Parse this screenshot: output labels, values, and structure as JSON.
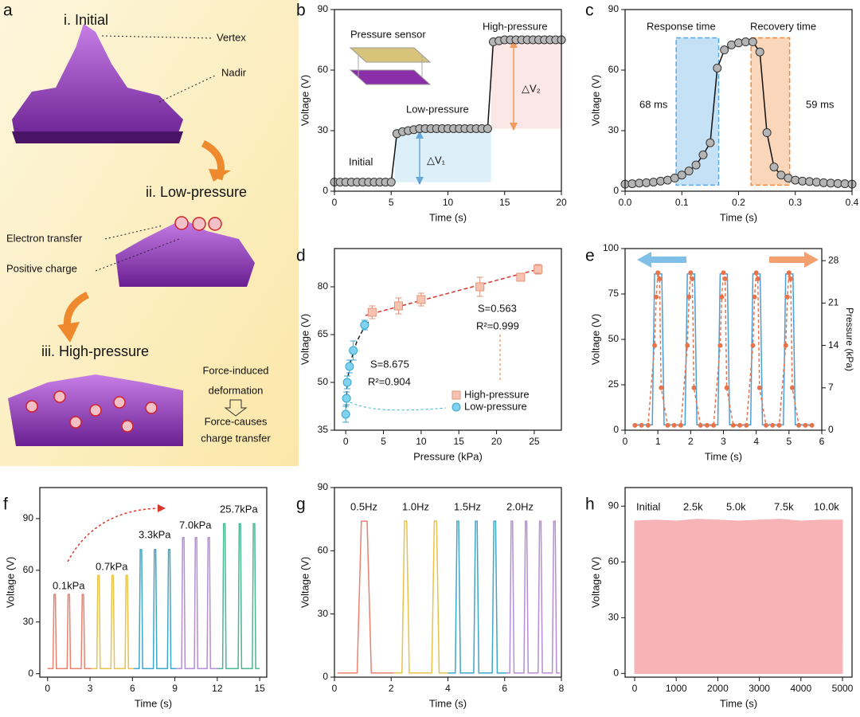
{
  "chart_data": [
    {
      "type": "illustration",
      "label": "a",
      "texts": [
        "i. Initial",
        "Vertex",
        "Nadir",
        "ii. Low-pressure",
        "Electron transfer",
        "Positive charge",
        "iii. High-pressure",
        "Force-induced",
        "deformation",
        "Force-causes",
        "charge transfer"
      ]
    },
    {
      "type": "line",
      "label": "b",
      "xlabel": "Time (s)",
      "ylabel": "Voltage (V)",
      "xlim": [
        0,
        20
      ],
      "ylim": [
        0,
        90
      ],
      "xticks": [
        0,
        5,
        10,
        15,
        20
      ],
      "yticks": [
        0,
        30,
        60,
        90
      ],
      "annotations": [
        "Pressure sensor",
        "Low-pressure",
        "High-pressure",
        "Initial",
        "△V₁",
        "△V₂"
      ],
      "regions": [
        {
          "x": [
            5.3,
            13.8
          ],
          "y": [
            4.5,
            31
          ],
          "color": "#9fd3ef"
        },
        {
          "x": [
            13.8,
            20
          ],
          "y": [
            31,
            75
          ],
          "color": "#f7b9b9"
        }
      ],
      "series": [
        {
          "color": "#111111",
          "marker": "circle",
          "marker_color": "#b5b5b5",
          "line_style": "solid",
          "x": [
            0,
            0.5,
            1,
            1.5,
            2,
            2.5,
            3,
            3.5,
            4,
            4.5,
            5,
            5.5,
            6,
            6.5,
            7,
            7.5,
            8,
            8.5,
            9,
            9.5,
            10,
            10.5,
            11,
            11.5,
            12,
            12.5,
            13,
            13.5,
            14,
            14.5,
            15,
            15.5,
            16,
            16.5,
            17,
            17.5,
            18,
            18.5,
            19,
            19.5,
            20
          ],
          "values": [
            4.5,
            4.5,
            4.5,
            4.5,
            4.5,
            4.5,
            4.5,
            4.5,
            4.5,
            4.5,
            4.5,
            28.5,
            29.5,
            30,
            30.5,
            31,
            31,
            31,
            31,
            31,
            31,
            31,
            31,
            31,
            31,
            31,
            31,
            31,
            74,
            74.5,
            75,
            75,
            75,
            75,
            75,
            75,
            75,
            75,
            75,
            75,
            75
          ]
        }
      ]
    },
    {
      "type": "line",
      "label": "c",
      "xlabel": "Time (s)",
      "ylabel": "Voltage (V)",
      "xlim": [
        0,
        0.4
      ],
      "ylim": [
        0,
        90
      ],
      "xticks": [
        {
          "value": 0,
          "label": "0.0"
        },
        0.1,
        0.2,
        0.3,
        0.4
      ],
      "yticks": [
        0,
        30,
        60,
        90
      ],
      "annotations": [
        "Response time",
        "Recovery time",
        "68 ms",
        "59 ms"
      ],
      "regions": [
        {
          "x": [
            0.09,
            0.165
          ],
          "y": [
            3,
            76
          ],
          "color": "#5aa9e6"
        },
        {
          "x": [
            0.222,
            0.29
          ],
          "y": [
            3,
            76
          ],
          "color": "#f08a3c"
        }
      ],
      "series": [
        {
          "color": "#111111",
          "marker": "circle",
          "marker_color": "#b5b5b5",
          "line_style": "solid",
          "x": [
            0,
            0.0125,
            0.025,
            0.0375,
            0.05,
            0.0625,
            0.075,
            0.0875,
            0.1,
            0.1125,
            0.125,
            0.1375,
            0.15,
            0.1625,
            0.175,
            0.1875,
            0.2,
            0.2125,
            0.225,
            0.2375,
            0.25,
            0.2625,
            0.275,
            0.2875,
            0.3,
            0.3125,
            0.325,
            0.3375,
            0.35,
            0.3625,
            0.375,
            0.3875,
            0.4
          ],
          "values": [
            3.5,
            3.7,
            4,
            4.2,
            4.5,
            5,
            5.5,
            6.5,
            8,
            10,
            13,
            18,
            24,
            61,
            70,
            72.5,
            73.5,
            74,
            74,
            69,
            29,
            12,
            8,
            6.5,
            5.5,
            5,
            4.8,
            4.5,
            4.2,
            4,
            3.8,
            3.7,
            3.5
          ]
        }
      ]
    },
    {
      "type": "scatter",
      "label": "d",
      "xlabel": "Pressure (kPa)",
      "ylabel": "Voltage (V)",
      "xlim": [
        -1.5,
        28.6
      ],
      "ylim": [
        35,
        92
      ],
      "xticks": [
        0,
        5,
        10,
        15,
        20,
        25
      ],
      "yticks": [
        35,
        50,
        65,
        80
      ],
      "legend": "lower right",
      "annotations": [
        "S=8.675",
        "R²=0.904",
        "S=0.563",
        "R²=0.999"
      ],
      "fits": [
        {
          "color": "#d9362c",
          "line_style": "dashed",
          "x": [
            2.6,
            25.5
          ],
          "values": [
            71,
            85.5
          ]
        },
        {
          "color": "#222222",
          "line_style": "dashed",
          "x": [
            0,
            0.2,
            0.5,
            1,
            1.5,
            2.5,
            3
          ],
          "values": [
            40,
            50,
            55,
            59.5,
            63,
            67.5,
            69
          ]
        }
      ],
      "series": [
        {
          "name": "High-pressure",
          "color": "#e3937a",
          "marker": "square",
          "marker_color": "#f6c3b0",
          "line_style": "none",
          "x": [
            3.5,
            7,
            10,
            17.8,
            23.2,
            25.5
          ],
          "values": [
            72,
            74,
            76,
            80,
            83,
            85.5
          ],
          "errors": [
            2,
            2.5,
            2,
            3,
            1,
            1.5
          ]
        },
        {
          "name": "Low-pressure",
          "color": "#3aa4cc",
          "marker": "circle",
          "marker_color": "#7fd3f0",
          "line_style": "none",
          "x": [
            0,
            0.1,
            0.2,
            0.5,
            1,
            2.5
          ],
          "values": [
            40,
            45,
            50,
            55,
            60,
            68
          ],
          "errors": [
            2.5,
            2,
            2,
            2,
            3,
            1.5
          ]
        }
      ]
    },
    {
      "type": "line",
      "label": "e",
      "xlabel": "Time (s)",
      "ylabel": "Voltage (V)",
      "y2label": "Pressure (kPa)",
      "xlim": [
        0,
        6
      ],
      "ylim": [
        0,
        100
      ],
      "y2lim": [
        0,
        30
      ],
      "xticks": [
        0,
        1,
        2,
        3,
        4,
        5,
        6
      ],
      "yticks": [
        0,
        25,
        50,
        75,
        100
      ],
      "y2ticks": [
        0,
        7,
        14,
        21,
        28
      ],
      "series": [
        {
          "color": "#4a9fd8",
          "line_style": "solid",
          "x": [
            0.3,
            0.83,
            0.9,
            1.12,
            1.19,
            1.83,
            1.9,
            2.12,
            2.19,
            2.83,
            2.9,
            3.12,
            3.19,
            3.83,
            3.9,
            4.12,
            4.19,
            4.83,
            4.9,
            5.12,
            5.19,
            5.7
          ],
          "values": [
            3,
            3,
            86,
            86,
            3,
            3,
            86,
            86,
            3,
            3,
            86,
            86,
            3,
            3,
            86,
            86,
            3,
            3,
            86,
            86,
            3,
            3
          ]
        },
        {
          "color": "#e8734a",
          "axis": "y2",
          "line_style": "dashed",
          "marker": "circle",
          "marker_color": "#e8734a",
          "x": [
            0.3,
            0.5,
            0.7,
            0.9,
            0.95,
            1,
            1.05,
            1.1,
            1.3,
            1.5,
            1.7,
            1.9,
            1.95,
            2,
            2.05,
            2.1,
            2.3,
            2.5,
            2.7,
            2.9,
            2.95,
            3,
            3.05,
            3.1,
            3.3,
            3.5,
            3.7,
            3.9,
            3.95,
            4,
            4.05,
            4.1,
            4.3,
            4.5,
            4.7,
            4.9,
            4.95,
            5,
            5.05,
            5.1,
            5.3,
            5.5,
            5.7
          ],
          "values": [
            0.8,
            0.8,
            0.8,
            14,
            22,
            26,
            25,
            7,
            0.8,
            0.8,
            0.8,
            14,
            22,
            26,
            25,
            7,
            0.8,
            0.8,
            0.8,
            14,
            22,
            26,
            25,
            7,
            0.8,
            0.8,
            0.8,
            14,
            22,
            26,
            25,
            7,
            0.8,
            0.8,
            0.8,
            14,
            22,
            26,
            25,
            7,
            0.8,
            0.8,
            0.8
          ]
        }
      ]
    },
    {
      "type": "line",
      "label": "f",
      "xlabel": "Time (s)",
      "ylabel": "Voltage (V)",
      "xlim": [
        -0.55,
        15.5
      ],
      "ylim": [
        -2,
        108
      ],
      "xticks": [
        0,
        3,
        6,
        9,
        12,
        15
      ],
      "yticks": [
        0,
        30,
        60,
        90
      ],
      "annotations": [
        "0.1kPa",
        "0.7kPa",
        "3.3kPa",
        "7.0kPa",
        "25.7kPa"
      ],
      "series": [
        {
          "color": "#e8826f",
          "line_style": "solid",
          "x": [
            0,
            0.38,
            0.45,
            0.55,
            0.62,
            1.38,
            1.45,
            1.55,
            1.62,
            2.38,
            2.45,
            2.55,
            2.62,
            3.1
          ],
          "values": [
            3,
            3,
            46,
            46,
            3,
            3,
            46,
            46,
            3,
            3,
            46,
            46,
            3,
            3
          ]
        },
        {
          "color": "#e8c24a",
          "line_style": "solid",
          "x": [
            3.1,
            3.48,
            3.55,
            3.65,
            3.72,
            4.48,
            4.55,
            4.65,
            4.72,
            5.48,
            5.55,
            5.65,
            5.72,
            6.1
          ],
          "values": [
            3,
            3,
            57,
            57,
            3,
            3,
            57,
            57,
            3,
            3,
            57,
            57,
            3,
            3
          ]
        },
        {
          "color": "#3fa6c9",
          "line_style": "solid",
          "x": [
            6.1,
            6.48,
            6.55,
            6.65,
            6.72,
            7.48,
            7.55,
            7.65,
            7.72,
            8.48,
            8.55,
            8.65,
            8.72,
            9.1
          ],
          "values": [
            3,
            3,
            72,
            72,
            3,
            3,
            72,
            72,
            3,
            3,
            72,
            72,
            3,
            3
          ]
        },
        {
          "color": "#b48ed6",
          "line_style": "solid",
          "x": [
            9.1,
            9.48,
            9.55,
            9.65,
            9.72,
            10.38,
            10.45,
            10.55,
            10.62,
            11.28,
            11.35,
            11.45,
            11.52,
            12
          ],
          "values": [
            3,
            3,
            79,
            79,
            3,
            3,
            79,
            79,
            3,
            3,
            79,
            79,
            3,
            3
          ]
        },
        {
          "color": "#4bb594",
          "line_style": "solid",
          "x": [
            12,
            12.38,
            12.45,
            12.55,
            12.62,
            13.48,
            13.55,
            13.65,
            13.72,
            14.48,
            14.55,
            14.65,
            14.72,
            15
          ],
          "values": [
            3,
            3,
            87,
            87,
            3,
            3,
            87,
            87,
            3,
            3,
            87,
            87,
            3,
            3
          ]
        }
      ]
    },
    {
      "type": "line",
      "label": "g",
      "xlabel": "Time (s)",
      "ylabel": "Voltage (V)",
      "xlim": [
        0,
        8
      ],
      "ylim": [
        0,
        90
      ],
      "xticks": [
        0,
        2,
        4,
        6,
        8
      ],
      "yticks": [
        0,
        30,
        60,
        90
      ],
      "annotations": [
        "0.5Hz",
        "1.0Hz",
        "1.5Hz",
        "2.0Hz"
      ],
      "series": [
        {
          "color": "#e8826f",
          "line_style": "solid",
          "x": [
            0.1,
            0.8,
            0.95,
            1.15,
            1.3,
            2.1
          ],
          "values": [
            2,
            2,
            74,
            74,
            2,
            2
          ]
        },
        {
          "color": "#e8c24a",
          "line_style": "solid",
          "x": [
            2.1,
            2.38,
            2.47,
            2.55,
            2.64,
            3.43,
            3.52,
            3.6,
            3.69,
            4
          ],
          "values": [
            2,
            2,
            74,
            74,
            2,
            2,
            74,
            74,
            2,
            2
          ]
        },
        {
          "color": "#3fa6c9",
          "line_style": "solid",
          "x": [
            4,
            4.26,
            4.32,
            4.38,
            4.44,
            4.91,
            4.97,
            5.03,
            5.09,
            5.56,
            5.62,
            5.68,
            5.74,
            6.05
          ],
          "values": [
            2,
            2,
            74,
            74,
            2,
            2,
            74,
            74,
            2,
            2,
            74,
            74,
            2,
            2
          ]
        },
        {
          "color": "#b48ed6",
          "line_style": "solid",
          "x": [
            6.05,
            6.18,
            6.23,
            6.28,
            6.33,
            6.68,
            6.73,
            6.78,
            6.83,
            7.18,
            7.23,
            7.28,
            7.33,
            7.68,
            7.73,
            7.78,
            7.83,
            7.95
          ],
          "values": [
            2,
            2,
            74,
            74,
            2,
            2,
            74,
            74,
            2,
            2,
            74,
            74,
            2,
            2,
            74,
            74,
            2,
            2
          ]
        }
      ]
    },
    {
      "type": "area",
      "label": "h",
      "xlabel": "Time (s)",
      "ylabel": "Voltage (V)",
      "xlim": [
        -230,
        5230
      ],
      "ylim": [
        -2,
        100
      ],
      "xticks": [
        0,
        1000,
        2000,
        3000,
        4000,
        5000
      ],
      "yticks": [
        0,
        30,
        60,
        90
      ],
      "annotations": [
        "Initial",
        "2.5k",
        "5.0k",
        "7.5k",
        "10.0k"
      ],
      "series": [
        {
          "color": "#f7b3b5",
          "line_style": "solid",
          "x": [
            0,
            500,
            1000,
            1500,
            2000,
            2500,
            3000,
            3500,
            4000,
            4500,
            5000
          ],
          "values": [
            82,
            82.5,
            82,
            83,
            82.5,
            82,
            82.5,
            83,
            82,
            82.5,
            82.5
          ]
        }
      ]
    }
  ]
}
